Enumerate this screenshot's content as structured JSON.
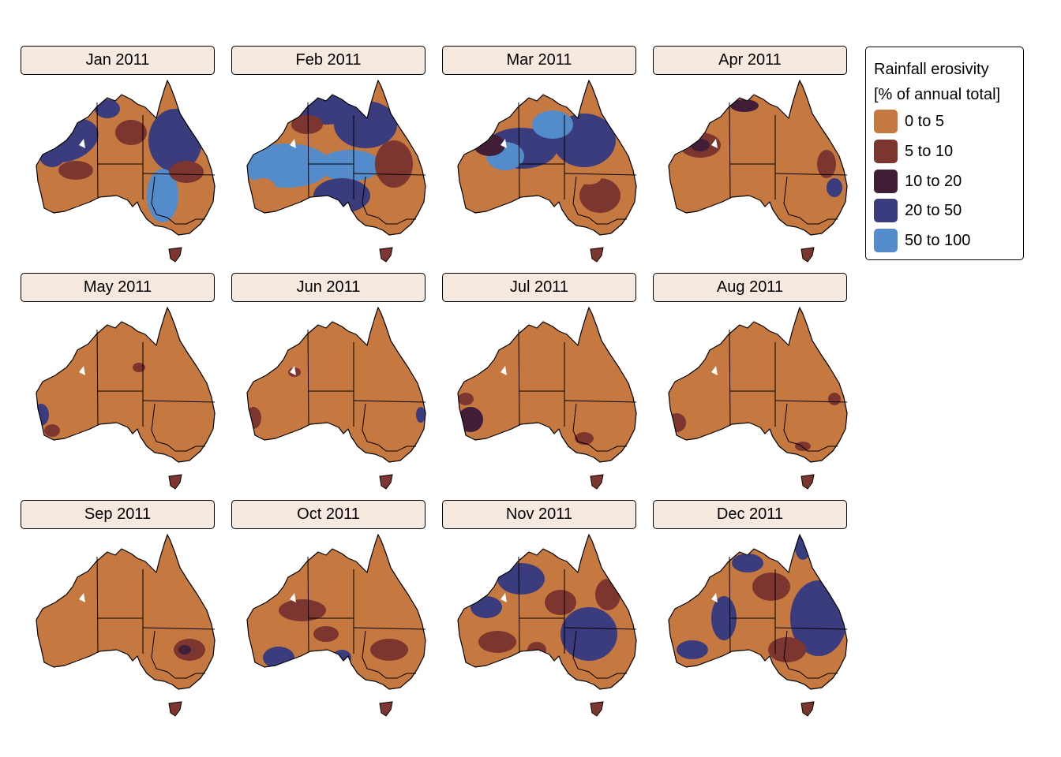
{
  "colors": {
    "map_border": "#000000",
    "strip_fill": "#f6e9df",
    "lake_fill": "#ffffff"
  },
  "legend": {
    "title_line1": "Rainfall erosivity",
    "title_line2": "[% of annual total]",
    "classes": [
      {
        "label": "0 to 5",
        "color": "#c5783f"
      },
      {
        "label": "5 to 10",
        "color": "#7d3530"
      },
      {
        "label": "10 to 20",
        "color": "#421d38"
      },
      {
        "label": "20 to 50",
        "color": "#3a3c7d"
      },
      {
        "label": "50 to 100",
        "color": "#548ccb"
      }
    ]
  },
  "panels": [
    {
      "label": "Jan 2011"
    },
    {
      "label": "Feb 2011"
    },
    {
      "label": "Mar 2011"
    },
    {
      "label": "Apr 2011"
    },
    {
      "label": "May 2011"
    },
    {
      "label": "Jun 2011"
    },
    {
      "label": "Jul 2011"
    },
    {
      "label": "Aug 2011"
    },
    {
      "label": "Sep 2011"
    },
    {
      "label": "Oct 2011"
    },
    {
      "label": "Nov 2011"
    },
    {
      "label": "Dec 2011"
    }
  ]
}
